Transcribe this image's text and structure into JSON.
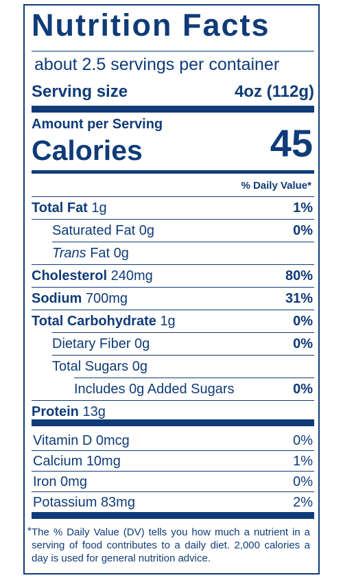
{
  "title": "Nutrition Facts",
  "servings_per_container": "about 2.5 servings per container",
  "serving_size": {
    "label": "Serving size",
    "value": "4oz (112g)"
  },
  "amount_per_serving": "Amount per Serving",
  "calories": {
    "label": "Calories",
    "value": "45"
  },
  "daily_value_header": "% Daily Value*",
  "nutrients": [
    {
      "name": "Total Fat",
      "amount": "1g",
      "dv": "1%"
    },
    {
      "name": "Saturated Fat",
      "amount": "0g",
      "dv": "0%"
    },
    {
      "name": "Trans",
      "suffix": "Fat",
      "amount": "0g",
      "dv": ""
    },
    {
      "name": "Cholesterol",
      "amount": "240mg",
      "dv": "80%"
    },
    {
      "name": "Sodium",
      "amount": "700mg",
      "dv": "31%"
    },
    {
      "name": "Total Carbohydrate",
      "amount": "1g",
      "dv": "0%"
    },
    {
      "name": "Dietary Fiber",
      "amount": "0g",
      "dv": "0%"
    },
    {
      "name": "Total Sugars",
      "amount": "0g",
      "dv": ""
    },
    {
      "name": "Includes",
      "suffix": "Added Sugars",
      "amount": "0g",
      "dv": "0%"
    },
    {
      "name": "Protein",
      "amount": "13g",
      "dv": ""
    }
  ],
  "vitamins": [
    {
      "name": "Vitamin D",
      "amount": "0mcg",
      "dv": "0%"
    },
    {
      "name": "Calcium",
      "amount": "10mg",
      "dv": "1%"
    },
    {
      "name": "Iron",
      "amount": "0mg",
      "dv": "0%"
    },
    {
      "name": "Potassium",
      "amount": "83mg",
      "dv": "2%"
    }
  ],
  "footnote": {
    "star": "*",
    "text": "The % Daily Value (DV) tells you how much a nutrient in a serving of food contributes to a daily diet. 2,000 calories a day is used for general nutrition advice."
  },
  "colors": {
    "ink": "#0f3b78",
    "background": "#ffffff"
  }
}
